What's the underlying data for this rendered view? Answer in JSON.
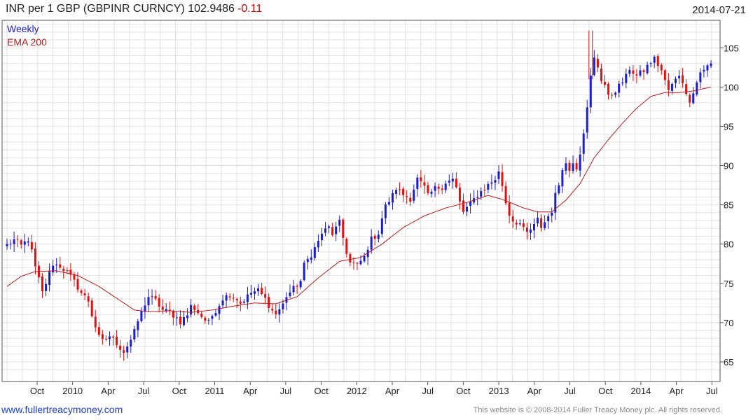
{
  "header": {
    "title": "INR per 1 GBP (GBPINR CURNCY) 102.9486",
    "change": "-0.11",
    "date": "2014-07-21"
  },
  "footer": {
    "website": "www.fullertreacymoney.com",
    "copyright": "This website is © 2008-2014 Fuller Treacy Money plc. All rights reserved."
  },
  "colors": {
    "up": "#1c1cd0",
    "down": "#e01010",
    "ema": "#b52020",
    "grid": "#e2e2e2",
    "frame": "#555555",
    "legend_weekly": "#1c1cd0",
    "legend_ema": "#b52020"
  },
  "chart_data": {
    "type": "candlestick",
    "legend": [
      "Weekly",
      "EMA 200"
    ],
    "y_ticks": [
      65,
      70,
      75,
      80,
      85,
      90,
      95,
      100,
      105
    ],
    "ylim": [
      62.5,
      108.5
    ],
    "x_ticks": [
      "Oct",
      "2010",
      "Apr",
      "Jul",
      "Oct",
      "2011",
      "Apr",
      "Jul",
      "Oct",
      "2012",
      "Apr",
      "Jul",
      "Oct",
      "2013",
      "Apr",
      "Jul",
      "Oct",
      "2014",
      "Apr",
      "Jul"
    ],
    "grid": true,
    "weekly_close_path": [
      [
        0,
        79.9
      ],
      [
        2,
        80.5
      ],
      [
        4,
        79.8
      ],
      [
        6,
        80.6
      ],
      [
        7,
        79.0
      ],
      [
        8,
        77.0
      ],
      [
        9,
        75.5
      ],
      [
        10,
        73.8
      ],
      [
        12,
        76.3
      ],
      [
        13,
        77.5
      ],
      [
        15,
        77.2
      ],
      [
        17,
        76.4
      ],
      [
        19,
        75.2
      ],
      [
        21,
        73.8
      ],
      [
        23,
        72.8
      ],
      [
        24,
        71.0
      ],
      [
        25,
        69.5
      ],
      [
        26,
        68.1
      ],
      [
        27,
        67.6
      ],
      [
        29,
        68.3
      ],
      [
        31,
        67.4
      ],
      [
        32,
        66.8
      ],
      [
        33,
        66.3
      ],
      [
        35,
        67.8
      ],
      [
        36,
        68.8
      ],
      [
        37,
        70.2
      ],
      [
        38,
        71.3
      ],
      [
        39,
        72.4
      ],
      [
        40,
        73.3
      ],
      [
        42,
        72.8
      ],
      [
        44,
        71.6
      ],
      [
        46,
        71.3
      ],
      [
        48,
        70.6
      ],
      [
        49,
        70.1
      ],
      [
        51,
        71.0
      ],
      [
        52,
        72.1
      ],
      [
        53,
        71.8
      ],
      [
        55,
        70.8
      ],
      [
        56,
        70.3
      ],
      [
        57,
        70.0
      ],
      [
        58,
        70.9
      ],
      [
        60,
        72.3
      ],
      [
        61,
        73.1
      ],
      [
        63,
        73.6
      ],
      [
        65,
        73.0
      ],
      [
        66,
        72.5
      ],
      [
        67,
        72.9
      ],
      [
        69,
        73.8
      ],
      [
        71,
        74.1
      ],
      [
        73,
        73.0
      ],
      [
        75,
        71.5
      ],
      [
        76,
        71.1
      ],
      [
        78,
        72.3
      ],
      [
        79,
        73.4
      ],
      [
        81,
        74.3
      ],
      [
        83,
        75.3
      ],
      [
        84,
        77.3
      ],
      [
        86,
        78.7
      ],
      [
        88,
        80.3
      ],
      [
        89,
        81.4
      ],
      [
        91,
        82.1
      ],
      [
        92,
        81.3
      ],
      [
        94,
        82.7
      ],
      [
        95,
        80.8
      ],
      [
        96,
        79.0
      ],
      [
        97,
        77.6
      ],
      [
        99,
        77.3
      ],
      [
        101,
        78.3
      ],
      [
        102,
        79.6
      ],
      [
        103,
        80.6
      ],
      [
        105,
        81.4
      ],
      [
        106,
        83.3
      ],
      [
        107,
        84.8
      ],
      [
        109,
        86.2
      ],
      [
        110,
        87.1
      ],
      [
        112,
        86.3
      ],
      [
        114,
        85.8
      ],
      [
        116,
        88.3
      ],
      [
        118,
        87.2
      ],
      [
        119,
        86.1
      ],
      [
        121,
        87.1
      ],
      [
        123,
        87.3
      ],
      [
        124,
        87.9
      ],
      [
        126,
        88.2
      ],
      [
        127,
        87.1
      ],
      [
        128,
        85.3
      ],
      [
        129,
        84.1
      ],
      [
        131,
        85.1
      ],
      [
        133,
        86.3
      ],
      [
        135,
        87.1
      ],
      [
        137,
        87.9
      ],
      [
        138,
        88.3
      ],
      [
        139,
        89.1
      ],
      [
        140,
        87.5
      ],
      [
        141,
        85.3
      ],
      [
        142,
        83.8
      ],
      [
        143,
        83.0
      ],
      [
        145,
        82.6
      ],
      [
        146,
        81.8
      ],
      [
        147,
        81.4
      ],
      [
        149,
        82.3
      ],
      [
        150,
        83.1
      ],
      [
        151,
        82.2
      ],
      [
        152,
        82.8
      ],
      [
        154,
        84.3
      ],
      [
        155,
        86.2
      ],
      [
        156,
        87.6
      ],
      [
        157,
        89.8
      ],
      [
        158,
        90.2
      ],
      [
        159,
        89.4
      ],
      [
        160,
        90.6
      ],
      [
        161,
        89.8
      ],
      [
        162,
        91.7
      ],
      [
        163,
        94.4
      ],
      [
        164,
        97.2
      ],
      [
        165,
        101.3
      ],
      [
        166,
        103.6
      ],
      [
        167,
        102.6
      ],
      [
        168,
        101.0
      ],
      [
        169,
        100.3
      ],
      [
        170,
        98.7
      ],
      [
        171,
        99.1
      ],
      [
        173,
        100.1
      ],
      [
        175,
        101.3
      ],
      [
        176,
        102.4
      ],
      [
        178,
        101.4
      ],
      [
        180,
        102.1
      ],
      [
        182,
        103.2
      ],
      [
        183,
        103.6
      ],
      [
        185,
        102.1
      ],
      [
        186,
        100.7
      ],
      [
        187,
        99.6
      ],
      [
        189,
        100.9
      ],
      [
        190,
        101.6
      ],
      [
        191,
        100.8
      ],
      [
        192,
        98.9
      ],
      [
        193,
        98.4
      ],
      [
        195,
        100.6
      ],
      [
        196,
        101.9
      ],
      [
        197,
        102.3
      ],
      [
        198,
        102.6
      ],
      [
        199,
        102.9
      ]
    ],
    "ema_200_path": [
      [
        0,
        74.6
      ],
      [
        4,
        75.9
      ],
      [
        8,
        76.5
      ],
      [
        14,
        76.6
      ],
      [
        20,
        76.0
      ],
      [
        26,
        74.6
      ],
      [
        32,
        72.8
      ],
      [
        36,
        71.6
      ],
      [
        40,
        71.4
      ],
      [
        46,
        71.5
      ],
      [
        52,
        71.3
      ],
      [
        58,
        71.6
      ],
      [
        64,
        72.1
      ],
      [
        70,
        72.5
      ],
      [
        76,
        72.4
      ],
      [
        82,
        73.3
      ],
      [
        88,
        75.7
      ],
      [
        94,
        77.8
      ],
      [
        100,
        78.3
      ],
      [
        106,
        80.0
      ],
      [
        112,
        82.1
      ],
      [
        118,
        83.6
      ],
      [
        124,
        84.6
      ],
      [
        130,
        85.3
      ],
      [
        136,
        86.2
      ],
      [
        140,
        85.7
      ],
      [
        146,
        84.6
      ],
      [
        150,
        84.1
      ],
      [
        154,
        84.1
      ],
      [
        158,
        85.6
      ],
      [
        162,
        87.7
      ],
      [
        166,
        91.0
      ],
      [
        170,
        93.3
      ],
      [
        174,
        95.4
      ],
      [
        178,
        97.3
      ],
      [
        182,
        98.8
      ],
      [
        186,
        99.3
      ],
      [
        190,
        99.3
      ],
      [
        194,
        99.5
      ],
      [
        199,
        100.0
      ]
    ]
  }
}
